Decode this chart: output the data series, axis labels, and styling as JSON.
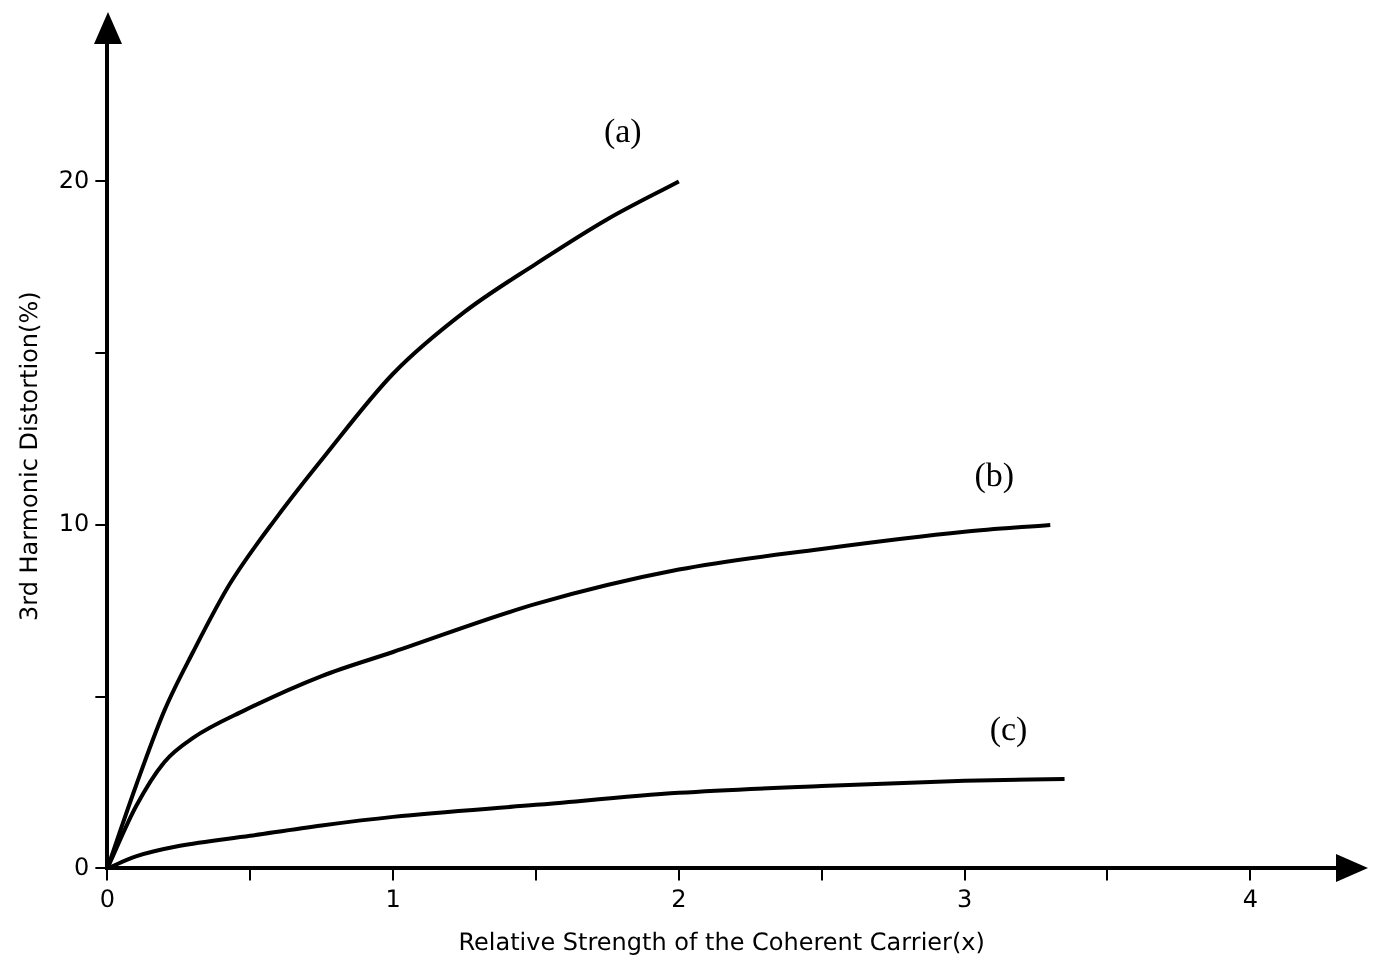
{
  "chart_data": {
    "type": "line",
    "xlabel": "Relative Strength of the Coherent Carrier(x)",
    "ylabel": "3rd Harmonic Distortion(%)",
    "xlim": [
      0,
      4.3
    ],
    "ylim": [
      0,
      24
    ],
    "xticks": [
      0,
      {
        "value": 0.5,
        "label": null
      },
      1,
      {
        "value": 1.5,
        "label": null
      },
      2,
      {
        "value": 2.5,
        "label": null
      },
      3,
      {
        "value": 3.5,
        "label": null
      },
      4
    ],
    "yticks": [
      0,
      {
        "value": 5,
        "label": null
      },
      10,
      {
        "value": 15,
        "label": null
      },
      20
    ],
    "grid": false,
    "legend": false,
    "marker": "none",
    "line_style": "solid",
    "series": [
      {
        "color": "#000000",
        "x": [
          0,
          0.1,
          0.2,
          0.3,
          0.43,
          0.6,
          0.76,
          1,
          1.25,
          1.5,
          1.75,
          2
        ],
        "values": [
          0,
          2.4,
          4.6,
          6.3,
          8.3,
          10.3,
          12,
          14.4,
          16.2,
          17.6,
          18.9,
          20
        ]
      },
      {
        "color": "#000000",
        "x": [
          0,
          0.1,
          0.2,
          0.3,
          0.48,
          0.75,
          1,
          1.5,
          2,
          2.5,
          3,
          3.3
        ],
        "values": [
          0,
          1.8,
          3.1,
          3.8,
          4.6,
          5.6,
          6.3,
          7.7,
          8.7,
          9.3,
          9.8,
          10
        ]
      },
      {
        "color": "#000000",
        "x": [
          0,
          0.1,
          0.25,
          0.5,
          0.75,
          1,
          1.5,
          2,
          2.5,
          3,
          3.35
        ],
        "values": [
          0,
          0.35,
          0.65,
          0.95,
          1.25,
          1.5,
          1.85,
          2.2,
          2.4,
          2.55,
          2.6
        ]
      }
    ],
    "annotations": [
      "(a)",
      "(b)",
      "(c)"
    ]
  }
}
